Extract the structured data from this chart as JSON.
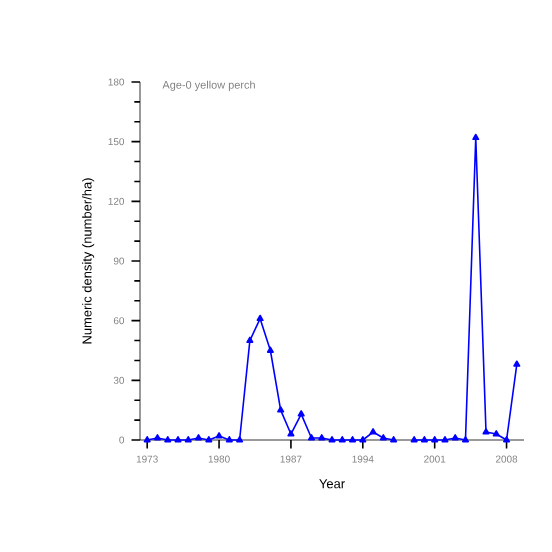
{
  "chart_data": {
    "type": "line",
    "title": "Age-0 yellow perch",
    "xlabel": "Year",
    "ylabel": "Numeric density (number/ha)",
    "x": [
      1973,
      1974,
      1975,
      1976,
      1977,
      1978,
      1979,
      1980,
      1981,
      1982,
      1983,
      1984,
      1985,
      1986,
      1987,
      1988,
      1989,
      1990,
      1991,
      1992,
      1993,
      1994,
      1995,
      1996,
      1997,
      1998,
      1999,
      2000,
      2001,
      2002,
      2003,
      2004,
      2005,
      2006,
      2007,
      2008,
      2009
    ],
    "series": [
      {
        "color": "#0000ff",
        "values": [
          0,
          1,
          0,
          0,
          0,
          1,
          0,
          2,
          0,
          0,
          50,
          61,
          45,
          15,
          3,
          13,
          1,
          1,
          0,
          0,
          0,
          0,
          4,
          1,
          0,
          null,
          0,
          0,
          0,
          0,
          1,
          0,
          152,
          4,
          3,
          0,
          38
        ]
      }
    ],
    "xlim": [
      1972.3,
      2009.7
    ],
    "ylim": [
      0,
      180
    ],
    "xticks": [
      1973,
      1980,
      1987,
      1994,
      2001,
      2008
    ],
    "yticks": [
      0,
      30,
      60,
      90,
      120,
      150,
      180
    ],
    "marker": "triangle"
  }
}
